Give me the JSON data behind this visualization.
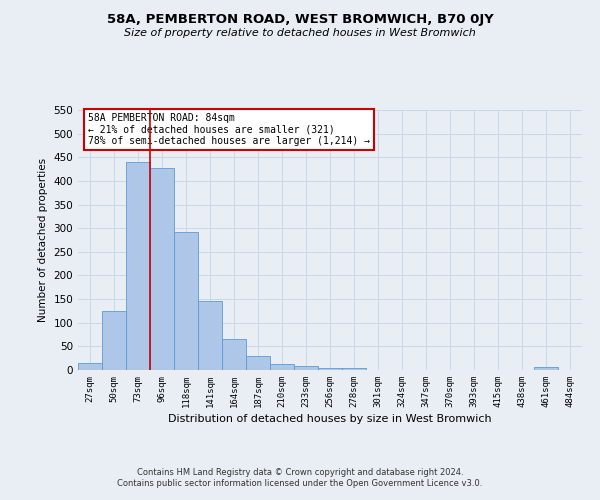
{
  "title": "58A, PEMBERTON ROAD, WEST BROMWICH, B70 0JY",
  "subtitle": "Size of property relative to detached houses in West Bromwich",
  "xlabel": "Distribution of detached houses by size in West Bromwich",
  "ylabel": "Number of detached properties",
  "footer_line1": "Contains HM Land Registry data © Crown copyright and database right 2024.",
  "footer_line2": "Contains public sector information licensed under the Open Government Licence v3.0.",
  "bin_labels": [
    "27sqm",
    "50sqm",
    "73sqm",
    "96sqm",
    "118sqm",
    "141sqm",
    "164sqm",
    "187sqm",
    "210sqm",
    "233sqm",
    "256sqm",
    "278sqm",
    "301sqm",
    "324sqm",
    "347sqm",
    "370sqm",
    "393sqm",
    "415sqm",
    "438sqm",
    "461sqm",
    "484sqm"
  ],
  "bar_values": [
    15,
    125,
    440,
    428,
    291,
    145,
    65,
    29,
    13,
    8,
    5,
    4,
    1,
    1,
    1,
    1,
    1,
    1,
    0,
    6,
    0
  ],
  "bar_color": "#aec6e8",
  "bar_edge_color": "#5b9bd5",
  "ylim": [
    0,
    550
  ],
  "yticks": [
    0,
    50,
    100,
    150,
    200,
    250,
    300,
    350,
    400,
    450,
    500,
    550
  ],
  "grid_color": "#c8d8e8",
  "vline_color": "#cc0000",
  "annotation_title": "58A PEMBERTON ROAD: 84sqm",
  "annotation_line1": "← 21% of detached houses are smaller (321)",
  "annotation_line2": "78% of semi-detached houses are larger (1,214) →",
  "annotation_box_color": "#cc0000",
  "background_color": "#e8eef4",
  "plot_bg_color": "#e8eef4"
}
